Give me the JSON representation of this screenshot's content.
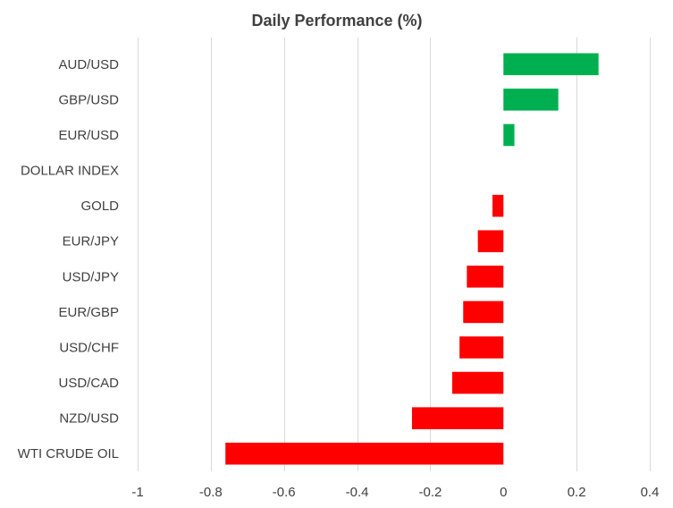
{
  "chart_data": {
    "type": "bar",
    "orientation": "horizontal",
    "title": "Daily Performance (%)",
    "categories": [
      "AUD/USD",
      "GBP/USD",
      "EUR/USD",
      "DOLLAR INDEX",
      "GOLD",
      "EUR/JPY",
      "USD/JPY",
      "EUR/GBP",
      "USD/CHF",
      "USD/CAD",
      "NZD/USD",
      "WTI CRUDE OIL"
    ],
    "values": [
      0.26,
      0.15,
      0.03,
      0.0,
      -0.03,
      -0.07,
      -0.1,
      -0.11,
      -0.12,
      -0.14,
      -0.25,
      -0.76
    ],
    "xlim": [
      -1,
      0.4
    ],
    "xticks": [
      -1,
      -0.8,
      -0.6,
      -0.4,
      -0.2,
      0,
      0.2,
      0.4
    ],
    "xtick_labels": [
      "-1",
      "-0.8",
      "-0.6",
      "-0.4",
      "-0.2",
      "0",
      "0.2",
      "0.4"
    ],
    "grid": "vertical",
    "legend": "none",
    "colors": {
      "positive": "#00b050",
      "negative": "#ff0000",
      "gridline": "#d9d9d9",
      "text": "#404040"
    }
  }
}
